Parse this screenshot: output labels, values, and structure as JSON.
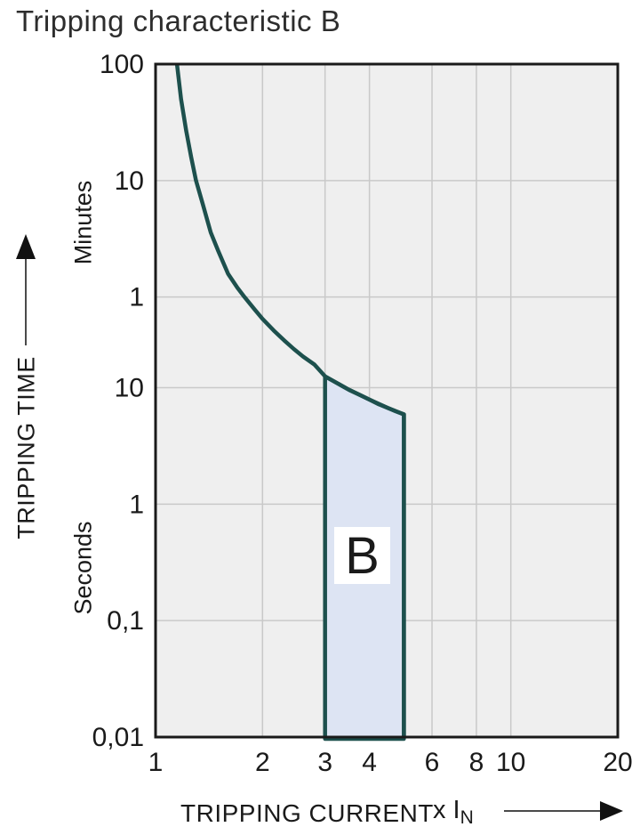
{
  "title": "Tripping characteristic B",
  "y_axis": {
    "axis_label": "TRIPPING TIME",
    "unit_upper": "Minutes",
    "unit_lower": "Seconds",
    "ticks": [
      {
        "label": "100",
        "seconds": 6000
      },
      {
        "label": "10",
        "seconds": 600
      },
      {
        "label": "1",
        "seconds": 60
      },
      {
        "label": "10",
        "seconds": 10
      },
      {
        "label": "1",
        "seconds": 1
      },
      {
        "label": "0,1",
        "seconds": 0.1
      },
      {
        "label": "0,01",
        "seconds": 0.01
      }
    ]
  },
  "x_axis": {
    "axis_label": "TRIPPING CURRENT",
    "multiplier_label": "x I",
    "multiplier_sub": "N",
    "ticks": [
      {
        "label": "1",
        "value": 1
      },
      {
        "label": "2",
        "value": 2
      },
      {
        "label": "3",
        "value": 3
      },
      {
        "label": "4",
        "value": 4
      },
      {
        "label": "6",
        "value": 6
      },
      {
        "label": "8",
        "value": 8
      },
      {
        "label": "10",
        "value": 10
      },
      {
        "label": "20",
        "value": 20
      }
    ]
  },
  "chart_data": {
    "type": "line",
    "title": "Tripping characteristic B",
    "xlabel": "TRIPPING CURRENT (x IN)",
    "ylabel": "TRIPPING TIME (Minutes / Seconds)",
    "x_scale": "log",
    "y_scale": "log",
    "xlim": [
      1,
      20
    ],
    "ylim_seconds": [
      0.01,
      6000
    ],
    "grid": true,
    "curve": {
      "name": "thermal-magnetic tripping curve",
      "points_multiple_vs_seconds": [
        [
          1.149,
          6000
        ],
        [
          1.18,
          3000
        ],
        [
          1.22,
          1600
        ],
        [
          1.26,
          950
        ],
        [
          1.3,
          600
        ],
        [
          1.36,
          370
        ],
        [
          1.43,
          215
        ],
        [
          1.5,
          150
        ],
        [
          1.6,
          95
        ],
        [
          1.7,
          72
        ],
        [
          1.78,
          60
        ],
        [
          1.9,
          47
        ],
        [
          2.0,
          39
        ],
        [
          2.15,
          31
        ],
        [
          2.3,
          25.5
        ],
        [
          2.45,
          21.5
        ],
        [
          2.6,
          18.5
        ],
        [
          2.8,
          15.8
        ],
        [
          3.0,
          12.5
        ],
        [
          3.25,
          10.9
        ],
        [
          3.5,
          9.6
        ],
        [
          3.75,
          8.7
        ],
        [
          4.0,
          7.9
        ],
        [
          4.25,
          7.2
        ],
        [
          4.5,
          6.7
        ],
        [
          4.75,
          6.25
        ],
        [
          5.0,
          5.9
        ],
        [
          5.0,
          0.01
        ]
      ]
    },
    "band": {
      "label": "B",
      "x_range": [
        3,
        5
      ],
      "bottom_seconds": 0.01,
      "top_edge_multiple_vs_seconds": [
        [
          3.0,
          12.5
        ],
        [
          3.5,
          9.6
        ],
        [
          4.0,
          7.9
        ],
        [
          4.5,
          6.7
        ],
        [
          5.0,
          5.9
        ]
      ]
    },
    "colors": {
      "curve": "#1d504d",
      "band_fill": "#dde4f3",
      "plot_bg": "#efefef",
      "grid": "#c9c9c9",
      "border": "#1a1a1a",
      "text": "#1a1a1a"
    }
  }
}
